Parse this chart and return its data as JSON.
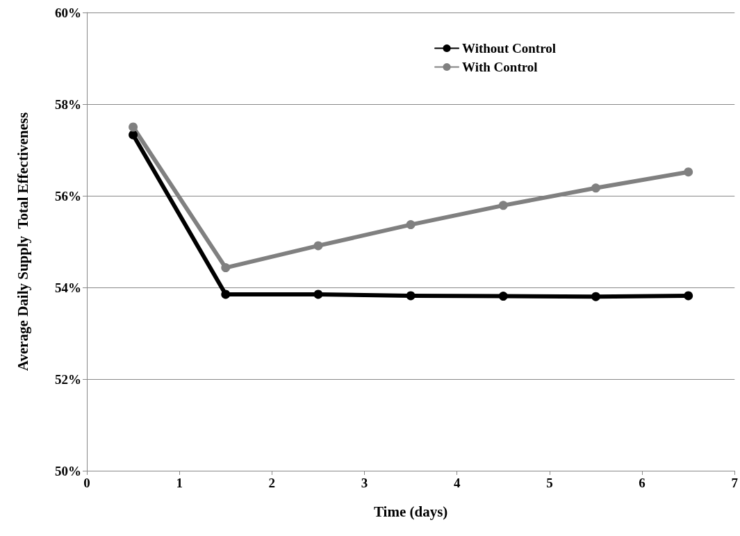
{
  "chart_data": {
    "type": "line",
    "xlabel": "Time (days)",
    "ylabel": "Average Daily Supply  Total Effectiveness",
    "x": [
      0.5,
      1.5,
      2.5,
      3.5,
      4.5,
      5.5,
      6.5
    ],
    "series": [
      {
        "name": "Without Control",
        "color": "#000000",
        "values": [
          57.33,
          53.85,
          53.85,
          53.82,
          53.81,
          53.8,
          53.82
        ]
      },
      {
        "name": "With Control",
        "color": "#808080",
        "values": [
          57.5,
          54.43,
          54.91,
          55.37,
          55.79,
          56.17,
          56.52
        ]
      }
    ],
    "xlim": [
      0,
      7
    ],
    "xticks": [
      0,
      1,
      2,
      3,
      4,
      5,
      6,
      7
    ],
    "ylim": [
      50,
      60
    ],
    "yticks": [
      {
        "value": 50,
        "label": "50%"
      },
      {
        "value": 52,
        "label": "52%"
      },
      {
        "value": 54,
        "label": "54%"
      },
      {
        "value": 56,
        "label": "56%"
      },
      {
        "value": 58,
        "label": "58%"
      },
      {
        "value": 60,
        "label": "60%"
      }
    ],
    "grid": "y",
    "legend": "top right",
    "marker": "circle",
    "line_style": "solid"
  }
}
